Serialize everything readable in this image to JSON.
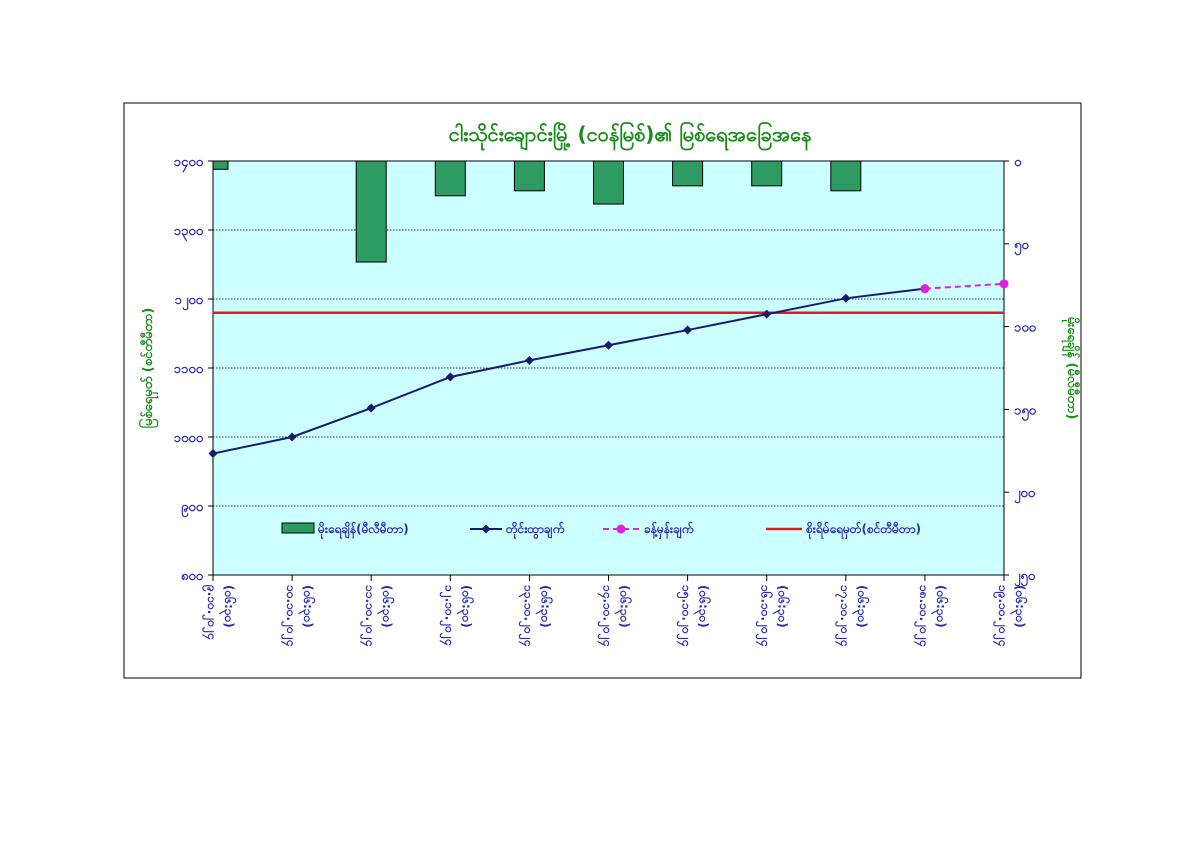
{
  "chart_data": {
    "type": "line",
    "title": "ငါးသိုင်းချောင်းမြို့ (ငဝန်မြစ်)၏ မြစ်ရေအခြေအနေ",
    "ylabel_left": "မြစ်ရေမှတ် (စင်တီမီတာ)",
    "ylabel_right": "မိုးရေချိန် (မီလီမီတာ)",
    "y_left_ticks": [
      "၈၀၀",
      "၉၀၀",
      "၁၀၀၀",
      "၁၁၀၀",
      "၁၂၀၀",
      "၁၃၀၀",
      "၁၄၀၀"
    ],
    "y_left_values": [
      800,
      900,
      1000,
      1100,
      1200,
      1300,
      1400
    ],
    "ylim_left": [
      800,
      1400
    ],
    "y_right_ticks": [
      "၀",
      "၅၀",
      "၁၀၀",
      "၁၅၀",
      "၂၀၀",
      "၂၅၀"
    ],
    "y_right_values": [
      0,
      50,
      100,
      150,
      200,
      250
    ],
    "ylim_right": [
      0,
      250
    ],
    "x_labels": [
      {
        "date": "၉.၁၀.၂၀၂၄",
        "time": "(၀၆:၃၀)"
      },
      {
        "date": "၁၀.၁၀.၂၀၂၄",
        "time": "(၀၆:၃၀)"
      },
      {
        "date": "၁၁.၁၀.၂၀၂၄",
        "time": "(၀၆:၃၀)"
      },
      {
        "date": "၁၂.၁၀.၂၀၂၄",
        "time": "(၀၆:၃၀)"
      },
      {
        "date": "၁၃.၁၀.၂၀၂၄",
        "time": "(၀၆:၃၀)"
      },
      {
        "date": "၁၄.၁၀.၂၀၂၄",
        "time": "(၀၆:၃၀)"
      },
      {
        "date": "၁၅.၁၀.၂၀၂၄",
        "time": "(၀၆:၃၀)"
      },
      {
        "date": "၁၆.၁၀.၂၀၂၄",
        "time": "(၀၆:၃၀)"
      },
      {
        "date": "၁၇.၁၀.၂၀၂၄",
        "time": "(၀၆:၃၀)"
      },
      {
        "date": "၁၈.၁၀.၂၀၂၄",
        "time": "(၀၆:၃၀)"
      },
      {
        "date": "၁၉.၁၀.၂၀၂၄",
        "time": "(၀၆:၃၀)"
      }
    ],
    "series": [
      {
        "name": "မိုးရေချိန်(မီလီမီတာ)",
        "kind": "bar",
        "axis": "right",
        "color": "#2e9b62",
        "values": [
          5,
          null,
          61,
          21,
          18,
          26,
          15,
          15,
          18,
          null,
          null
        ]
      },
      {
        "name": "တိုင်းထွာချက်",
        "kind": "line",
        "axis": "left",
        "color": "#1a1a6e",
        "values": [
          976,
          1000,
          1042,
          1087,
          1111,
          1133,
          1155,
          1178,
          1201,
          1215,
          null
        ]
      },
      {
        "name": "ခန့်မှန်းချက်",
        "kind": "dashed-line",
        "axis": "left",
        "color": "#e020e0",
        "values": [
          null,
          null,
          null,
          null,
          null,
          null,
          null,
          null,
          null,
          1215,
          1222
        ]
      },
      {
        "name": "စိုးရိမ်ရေမှတ်(စင်တီမီတာ)",
        "kind": "hline",
        "axis": "left",
        "color": "#e01a1a",
        "value": 1180
      }
    ],
    "legend_position": "bottom",
    "grid": true
  },
  "colors": {
    "plot_bg": "#ccffff",
    "title": "#1a8a1a",
    "labels": "#2b2bb0"
  }
}
